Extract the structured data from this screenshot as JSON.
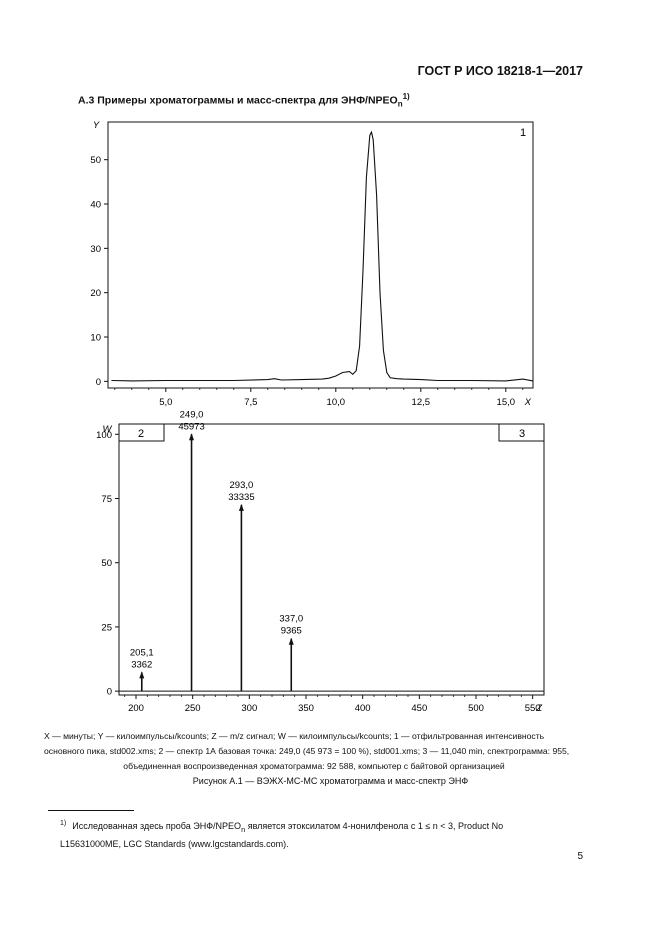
{
  "header": {
    "standard": "ГОСТ Р ИСО 18218-1—2017"
  },
  "section": {
    "title": "А.3  Примеры хроматограммы и масс-спектра для ЭНФ/NPEO",
    "sub": "n",
    "sup": "1)"
  },
  "chart_data": [
    {
      "type": "line",
      "ylabel": "Y",
      "xlabel": "X",
      "panel_label": "1",
      "xlim": [
        3.3,
        15.8
      ],
      "ylim": [
        -1.5,
        58.5
      ],
      "xticks": [
        5.0,
        7.5,
        10.0,
        12.5,
        15.0
      ],
      "xtick_labels": [
        "5,0",
        "7,5",
        "10,0",
        "12,5",
        "15,0"
      ],
      "yticks": [
        0,
        10,
        20,
        30,
        40,
        50
      ],
      "ytick_labels": [
        "0",
        "10",
        "20",
        "30",
        "40",
        "50"
      ],
      "series": [
        {
          "x": [
            3.4,
            4.0,
            5.0,
            6.0,
            7.0,
            8.0,
            8.2,
            8.4,
            9.0,
            9.6,
            9.8,
            10.0,
            10.2,
            10.4,
            10.5,
            10.6,
            10.7,
            10.8,
            10.9,
            11.0,
            11.05,
            11.1,
            11.2,
            11.3,
            11.4,
            11.5,
            11.6,
            11.8,
            12.0,
            12.5,
            13.0,
            14.0,
            15.0,
            15.5,
            15.8
          ],
          "y": [
            0.2,
            0.1,
            0.2,
            0.2,
            0.2,
            0.4,
            0.6,
            0.3,
            0.4,
            0.5,
            0.7,
            1.2,
            2.0,
            2.2,
            1.6,
            2.4,
            8.0,
            25.0,
            46.0,
            55.5,
            56.2,
            54.5,
            42.0,
            20.0,
            7.0,
            2.0,
            0.8,
            0.6,
            0.5,
            0.4,
            0.2,
            0.2,
            0.1,
            0.5,
            0.1
          ]
        }
      ]
    },
    {
      "type": "bar",
      "ylabel": "W",
      "xlabel": "Z",
      "panel_labels": [
        "2",
        "3"
      ],
      "xlim": [
        185,
        560
      ],
      "ylim": [
        -1.5,
        104
      ],
      "xticks": [
        200,
        250,
        300,
        350,
        400,
        450,
        500,
        550
      ],
      "yticks": [
        0,
        25,
        50,
        75,
        100
      ],
      "peaks": [
        {
          "mz": 205.1,
          "mz_label": "205,1",
          "intensity": 3362,
          "relative": 7.3
        },
        {
          "mz": 249.0,
          "mz_label": "249,0",
          "intensity": 45973,
          "relative": 100
        },
        {
          "mz": 293.0,
          "mz_label": "293,0",
          "intensity": 33335,
          "relative": 72.5
        },
        {
          "mz": 337.0,
          "mz_label": "337,0",
          "intensity": 9365,
          "relative": 20.4
        }
      ]
    }
  ],
  "legend": {
    "line1": "X — минуты; Y — килоимпульсы/kcounts; Z — m/z сигнал; W — килоимпульсы/kcounts; 1 — отфильтрованная интенсивность",
    "line2": "основного пика, std002.xms; 2 — спектр 1А базовая точка: 249,0 (45 973 = 100 %), std001.xms; 3 — 11,040 min, спектрограмма: 955,",
    "line3": "объединенная воспроизведенная хроматограмма: 92 588, компьютер с байтовой организацией"
  },
  "caption": "Рисунок А.1 — ВЭЖХ-МС-МС хроматограмма и масс-спектр ЭНФ",
  "footnote": {
    "mark": "1)",
    "line1": "Исследованная здесь проба ЭНФ/NPEO",
    "line1_sub": "n",
    "line1_rest": " является этоксилатом 4-нонилфенола с 1 ≤ n < 3, Product No",
    "line2": "L15631000ME, LGC Standards (www.lgcstandards.com)."
  },
  "page_number": "5"
}
